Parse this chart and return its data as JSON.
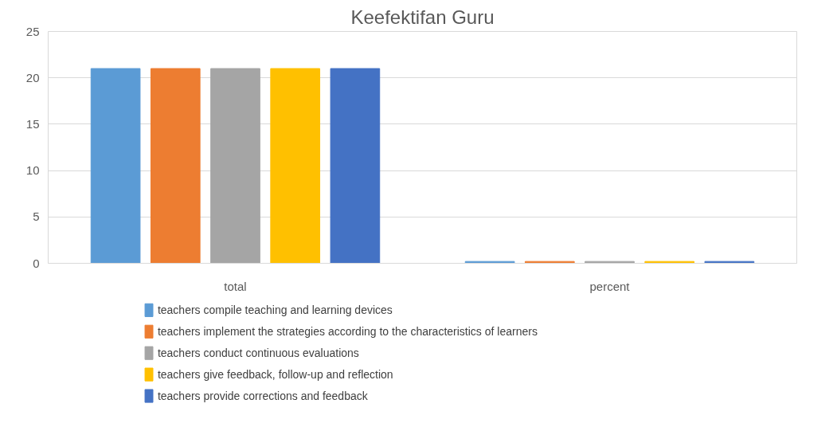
{
  "chart_data": {
    "type": "bar",
    "title": "Keefektifan Guru",
    "categories": [
      "total",
      "percent"
    ],
    "series": [
      {
        "name": "teachers compile teaching and learning devices",
        "color": "#5b9bd5",
        "values": [
          21,
          0.2
        ]
      },
      {
        "name": "teachers implement the strategies according to the characteristics of learners",
        "color": "#ed7d31",
        "values": [
          21,
          0.2
        ]
      },
      {
        "name": "teachers conduct continuous evaluations",
        "color": "#a5a5a5",
        "values": [
          21,
          0.2
        ]
      },
      {
        "name": "teachers give feedback, follow-up and reflection",
        "color": "#ffc000",
        "values": [
          21,
          0.2
        ]
      },
      {
        "name": "teachers provide corrections and feedback",
        "color": "#4472c4",
        "values": [
          21,
          0.2
        ]
      }
    ],
    "ylim": [
      0,
      25
    ],
    "yticks": [
      0,
      5,
      10,
      15,
      20,
      25
    ],
    "grid": "y",
    "legend": "bottom"
  }
}
